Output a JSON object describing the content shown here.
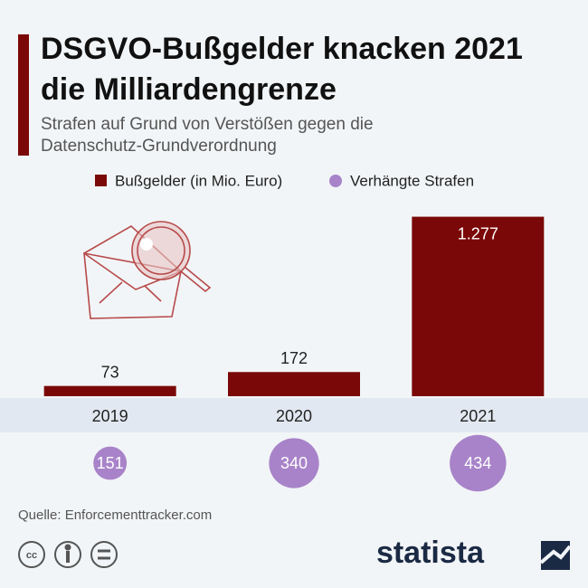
{
  "chart_data": {
    "type": "bar",
    "title": "DSGVO-Bußgelder knacken 2021 die Milliardengrenze",
    "subtitle": "Strafen auf Grund von Verstößen gegen die Datenschutz-Grundverordnung",
    "categories": [
      "2019",
      "2020",
      "2021"
    ],
    "series": [
      {
        "name": "Bußgelder (in Mio. Euro)",
        "color": "#7b0808",
        "values": [
          73,
          172,
          1277
        ],
        "value_labels": [
          "73",
          "172",
          "1.277"
        ]
      },
      {
        "name": "Verhängte Strafen",
        "type": "bubble",
        "color": "#a883c9",
        "values": [
          151,
          340,
          434
        ]
      }
    ],
    "ylim": [
      0,
      1300
    ],
    "source": "Quelle: Enforcementtracker.com",
    "brand": "statista"
  }
}
